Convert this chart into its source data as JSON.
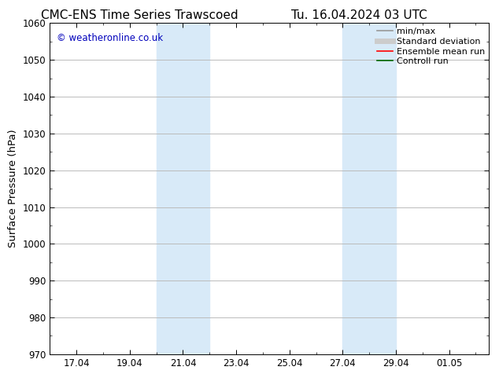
{
  "title_left": "CMC-ENS Time Series Trawscoed",
  "title_right": "Tu. 16.04.2024 03 UTC",
  "ylabel": "Surface Pressure (hPa)",
  "ylim": [
    970,
    1060
  ],
  "yticks": [
    970,
    980,
    990,
    1000,
    1010,
    1020,
    1030,
    1040,
    1050,
    1060
  ],
  "xlim": [
    16.0,
    32.5
  ],
  "xtick_positions": [
    17,
    19,
    21,
    23,
    25,
    27,
    29,
    31
  ],
  "xtick_labels": [
    "17.04",
    "19.04",
    "21.04",
    "23.04",
    "25.04",
    "27.04",
    "29.04",
    "01.05"
  ],
  "shade_bands": [
    {
      "xstart": 20.0,
      "xend": 22.0
    },
    {
      "xstart": 27.0,
      "xend": 29.0
    }
  ],
  "shade_color": "#d8eaf8",
  "background_color": "#ffffff",
  "plot_bg_color": "#ffffff",
  "watermark_text": "© weatheronline.co.uk",
  "watermark_color": "#0000bb",
  "legend_items": [
    {
      "label": "min/max",
      "color": "#999999",
      "lw": 1.2
    },
    {
      "label": "Standard deviation",
      "color": "#cccccc",
      "lw": 5
    },
    {
      "label": "Ensemble mean run",
      "color": "#ff0000",
      "lw": 1.2
    },
    {
      "label": "Controll run",
      "color": "#006600",
      "lw": 1.2
    }
  ],
  "grid_color": "#bbbbbb",
  "tick_fontsize": 8.5,
  "ylabel_fontsize": 9.5,
  "title_fontsize": 11,
  "legend_fontsize": 8
}
